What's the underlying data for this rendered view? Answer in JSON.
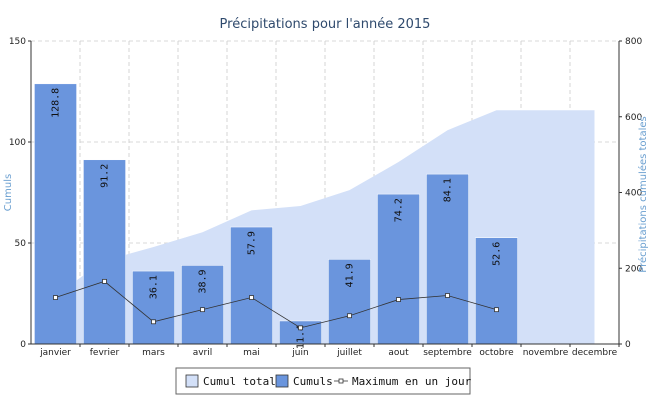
{
  "chart_data": {
    "type": "bar",
    "title": "Précipitations pour l'année 2015",
    "categories": [
      "janvier",
      "fevrier",
      "mars",
      "avril",
      "mai",
      "juin",
      "juillet",
      "aout",
      "septembre",
      "octobre",
      "novembre",
      "decembre"
    ],
    "ylabel": "Cumuls",
    "y2label": "Précipitations cumulées totales",
    "ylim": [
      0,
      150
    ],
    "y2lim": [
      0,
      800
    ],
    "yticks": [
      0,
      50,
      100,
      150
    ],
    "y2ticks": [
      0,
      200,
      400,
      600,
      800
    ],
    "grid": true,
    "legend_position": "bottom",
    "series": [
      {
        "name": "Cumuls",
        "type": "bar",
        "axis": "left",
        "color": "#6a95dd",
        "values": [
          128.8,
          91.2,
          36.1,
          38.9,
          57.9,
          11.4,
          41.9,
          74.2,
          84.1,
          52.6,
          null,
          null
        ],
        "labels": [
          "128.8",
          "91.2",
          "36.1",
          "38.9",
          "57.9",
          "11.4",
          "41.9",
          "74.2",
          "84.1",
          "52.6",
          "",
          ""
        ]
      },
      {
        "name": "Cumul total",
        "type": "area",
        "axis": "right",
        "color": "#d3e0f8",
        "values": [
          128.8,
          220.0,
          256.1,
          295.0,
          352.9,
          364.3,
          406.2,
          480.4,
          564.5,
          617.1,
          617.1,
          617.1
        ]
      },
      {
        "name": "Maximum en un jour",
        "type": "line",
        "axis": "left",
        "color": "#333333",
        "values": [
          23,
          31,
          11,
          17,
          23,
          8,
          14,
          22,
          24,
          17,
          null,
          null
        ]
      }
    ]
  }
}
